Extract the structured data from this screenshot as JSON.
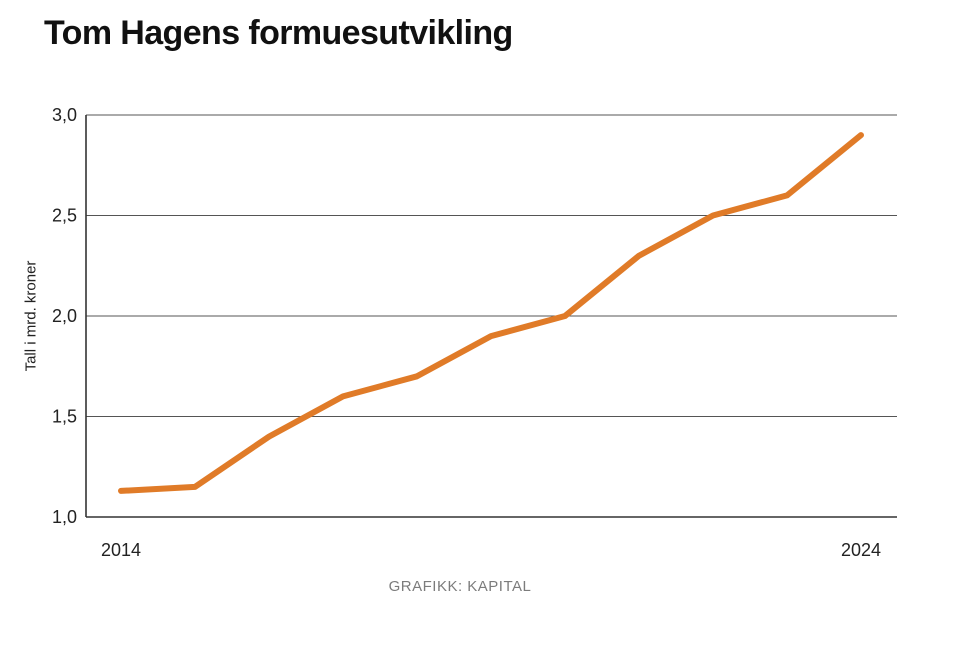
{
  "chart_data": {
    "type": "line",
    "title": "Tom Hagens formuesutvikling",
    "xlabel": "",
    "ylabel": "Tall i mrd. kroner",
    "x": [
      2014,
      2015,
      2016,
      2017,
      2018,
      2019,
      2020,
      2021,
      2022,
      2023,
      2024
    ],
    "values": [
      1.13,
      1.15,
      1.4,
      1.6,
      1.7,
      1.9,
      2.0,
      2.3,
      2.5,
      2.6,
      2.9
    ],
    "ylim": [
      1.0,
      3.0
    ],
    "yticks": [
      1.0,
      1.5,
      2.0,
      2.5,
      3.0
    ],
    "ytick_labels": [
      "1,0",
      "1,5",
      "2,0",
      "2,5",
      "3,0"
    ],
    "xtick_labels": [
      {
        "x": 2014,
        "label": "2014"
      },
      {
        "x": 2024,
        "label": "2024"
      }
    ],
    "grid": true,
    "line_color": "#E07B28",
    "source": "GRAFIKK: KAPITAL"
  }
}
